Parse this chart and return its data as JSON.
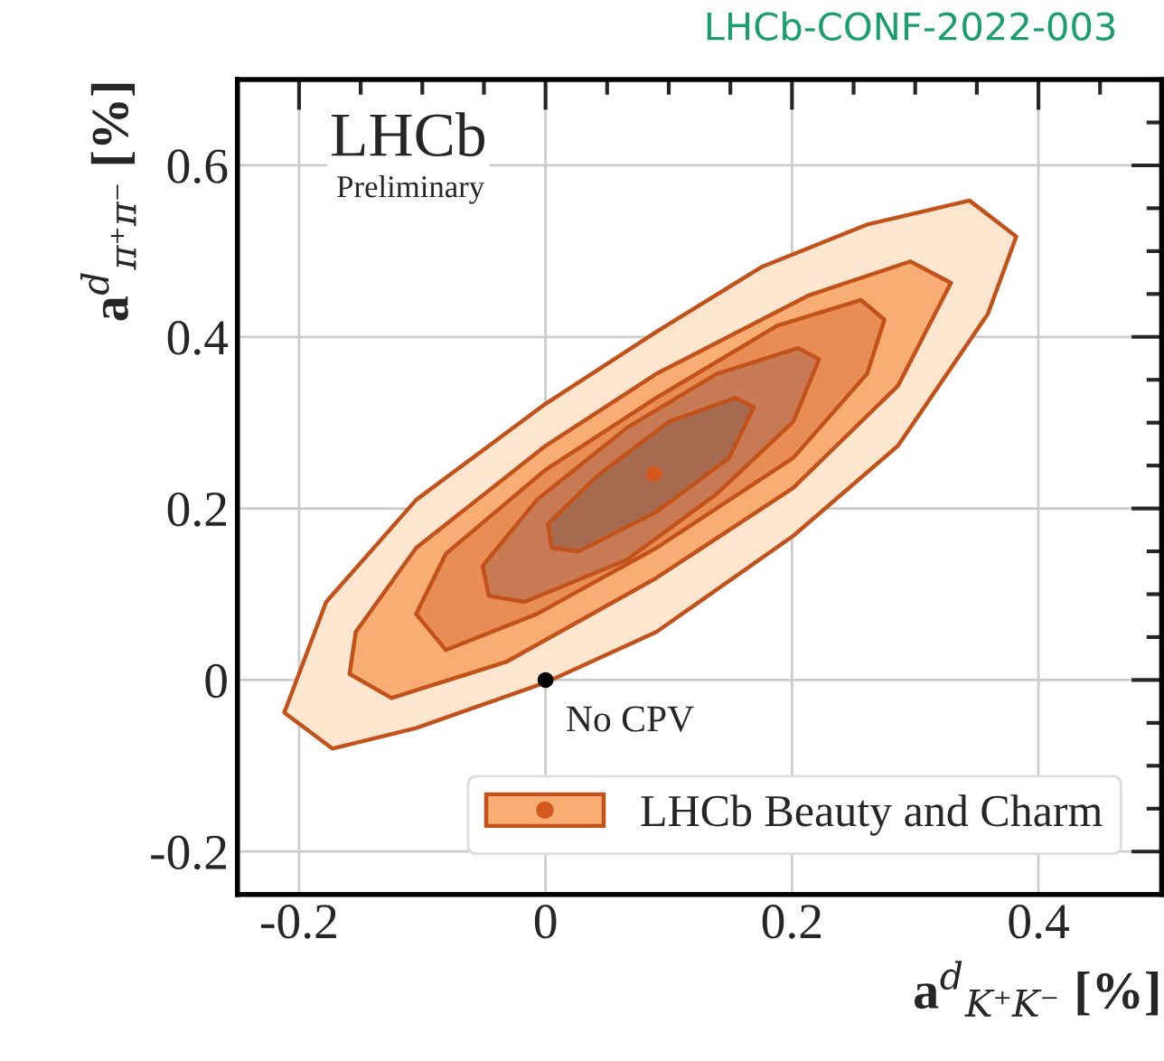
{
  "chart_data": {
    "type": "area",
    "xlabel": "a$^{d}$$_{K⁺K⁻}$ [%]",
    "ylabel": "a$^{d}$$_{π⁺π⁻}$ [%]",
    "xlim": [
      -0.25,
      0.5
    ],
    "ylim": [
      -0.25,
      0.7
    ],
    "xticks": [
      {
        "value": -0.2,
        "label": "-0.2"
      },
      0,
      0.2,
      0.4
    ],
    "yticks": [
      {
        "value": -0.2,
        "label": "-0.2"
      },
      0,
      0.2,
      0.4,
      0.6
    ],
    "grid": true,
    "legend": "bottom right",
    "series": [
      {
        "color": "#fde6d0",
        "x": [
          0.382,
          0.344,
          0.261,
          0.176,
          0.09,
          0,
          -0.105,
          -0.178,
          -0.212,
          -0.173,
          -0.105,
          0,
          0.09,
          0.201,
          0.286,
          0.359
        ],
        "values": [
          0.517,
          0.559,
          0.531,
          0.482,
          0.406,
          0.322,
          0.21,
          0.091,
          -0.038,
          -0.08,
          -0.056,
          -0.003,
          0.056,
          0.168,
          0.273,
          0.427
        ]
      },
      {
        "color": "#f7ad73",
        "x": [
          0.329,
          0.296,
          0.213,
          0.09,
          0,
          -0.105,
          -0.154,
          -0.159,
          -0.125,
          -0.032,
          0.09,
          0.201,
          0.286
        ],
        "values": [
          0.463,
          0.488,
          0.448,
          0.357,
          0.273,
          0.154,
          0.056,
          0.007,
          -0.021,
          0.021,
          0.119,
          0.224,
          0.343
        ]
      },
      {
        "color": "#e98d57",
        "x": [
          0.275,
          0.256,
          0.188,
          0.09,
          0,
          -0.081,
          -0.105,
          -0.081,
          -0.007,
          0.09,
          0.201,
          0.261
        ],
        "values": [
          0.42,
          0.443,
          0.413,
          0.329,
          0.245,
          0.147,
          0.077,
          0.035,
          0.077,
          0.154,
          0.259,
          0.357
        ]
      },
      {
        "color": "#c87a55",
        "x": [
          0.222,
          0.205,
          0.139,
          0.066,
          -0.007,
          -0.051,
          -0.046,
          -0.017,
          0.066,
          0.139,
          0.201
        ],
        "values": [
          0.374,
          0.387,
          0.357,
          0.294,
          0.21,
          0.133,
          0.098,
          0.091,
          0.14,
          0.217,
          0.301
        ]
      },
      {
        "color": "#a66a50",
        "x": [
          0.169,
          0.154,
          0.1,
          0.042,
          0.002,
          0.005,
          0.027,
          0.09,
          0.149
        ],
        "values": [
          0.318,
          0.329,
          0.301,
          0.238,
          0.182,
          0.154,
          0.15,
          0.196,
          0.259
        ]
      },
      {
        "type": "scatter",
        "name": "LHCb Beauty and Charm",
        "color": "#d4581c",
        "x": [
          0.088
        ],
        "values": [
          0.24
        ]
      },
      {
        "type": "scatter",
        "color": "#000000",
        "x": [
          0
        ],
        "values": [
          0
        ]
      }
    ],
    "annotations": [
      {
        "text": "No CPV",
        "x": 0,
        "y": 0
      },
      "LHCb",
      "Preliminary",
      "LHCb-CONF-2022-003"
    ]
  }
}
